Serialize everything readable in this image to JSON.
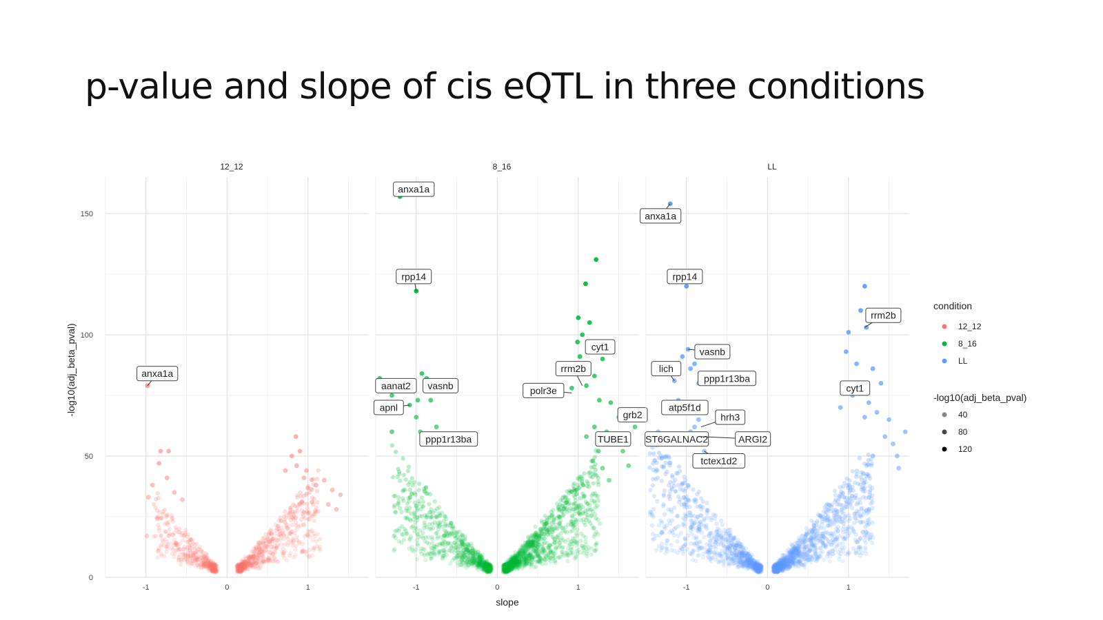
{
  "slide": {
    "title": "p-value and slope of cis eQTL in three conditions"
  },
  "chart_data": {
    "type": "scatter",
    "xlabel": "slope",
    "ylabel": "-log10(adj_beta_pval)",
    "xlim": [
      -1.5,
      1.75
    ],
    "ylim": [
      0,
      165
    ],
    "x_ticks": [
      -1,
      0,
      1
    ],
    "y_ticks": [
      0,
      50,
      100,
      150
    ],
    "grid": true,
    "legend_position": "right",
    "legend": {
      "color_title": "condition",
      "color_entries": [
        {
          "label": "12_12",
          "color": "#F8766D"
        },
        {
          "label": "8_16",
          "color": "#00BA38"
        },
        {
          "label": "LL",
          "color": "#619CFF"
        }
      ],
      "alpha_title": "-log10(adj_beta_pval)",
      "alpha_entries": [
        {
          "label": "40",
          "value": 40
        },
        {
          "label": "80",
          "value": 80
        },
        {
          "label": "120",
          "value": 120
        }
      ]
    },
    "facets": [
      {
        "name": "12_12",
        "color": "#F8766D",
        "highlight_points": [
          [
            -0.98,
            79
          ],
          [
            -0.72,
            52
          ],
          [
            -0.82,
            52
          ],
          [
            -0.84,
            47
          ],
          [
            -0.74,
            41
          ],
          [
            -0.92,
            38
          ],
          [
            -0.65,
            35
          ],
          [
            -0.55,
            32
          ],
          [
            -0.97,
            33
          ],
          [
            -0.99,
            17
          ],
          [
            0.85,
            58
          ],
          [
            0.9,
            52
          ],
          [
            0.8,
            50
          ],
          [
            0.98,
            44
          ],
          [
            0.86,
            46
          ],
          [
            1.2,
            40
          ],
          [
            1.3,
            36
          ],
          [
            1.4,
            34
          ],
          [
            1.1,
            38
          ],
          [
            1.25,
            30
          ],
          [
            1.35,
            28
          ],
          [
            0.95,
            41
          ],
          [
            1.05,
            31
          ],
          [
            0.72,
            44
          ]
        ],
        "cloud": {
          "slope_min": 0.15,
          "neg_spread": 0.75,
          "pos_spread": 1.0,
          "n_neg": 420,
          "n_pos": 650
        },
        "labels": [
          {
            "text": "anxa1a",
            "x": -0.98,
            "y": 79,
            "lx": -0.86,
            "ly": 84
          }
        ]
      },
      {
        "name": "8_16",
        "color": "#00BA38",
        "highlight_points": [
          [
            -1.2,
            157
          ],
          [
            -1.0,
            118
          ],
          [
            1.22,
            131
          ],
          [
            1.09,
            121
          ],
          [
            1.0,
            107
          ],
          [
            1.14,
            105
          ],
          [
            1.05,
            100
          ],
          [
            0.99,
            97
          ],
          [
            1.3,
            90
          ],
          [
            1.02,
            91
          ],
          [
            1.2,
            83
          ],
          [
            1.1,
            79
          ],
          [
            0.92,
            78
          ],
          [
            1.26,
            73
          ],
          [
            1.4,
            72
          ],
          [
            -1.45,
            82
          ],
          [
            -0.93,
            84
          ],
          [
            -0.87,
            82
          ],
          [
            -1.25,
            78
          ],
          [
            -1.08,
            71
          ],
          [
            -1.3,
            75
          ],
          [
            -0.98,
            73
          ],
          [
            -0.82,
            73
          ],
          [
            -1.3,
            60
          ],
          [
            -0.75,
            62
          ],
          [
            -1.0,
            66
          ],
          [
            -0.95,
            60
          ],
          [
            -1.4,
            70
          ],
          [
            -1.2,
            68
          ],
          [
            -0.8,
            58
          ],
          [
            1.5,
            66
          ],
          [
            1.7,
            62
          ],
          [
            1.45,
            55
          ],
          [
            1.62,
            46
          ],
          [
            1.55,
            52
          ],
          [
            1.35,
            60
          ],
          [
            1.2,
            62
          ],
          [
            1.1,
            58
          ],
          [
            1.3,
            45
          ],
          [
            1.25,
            52
          ],
          [
            1.18,
            48
          ],
          [
            1.38,
            40
          ]
        ],
        "cloud": {
          "slope_min": 0.1,
          "neg_spread": 1.2,
          "pos_spread": 1.15,
          "n_neg": 800,
          "n_pos": 1300
        },
        "labels": [
          {
            "text": "anxa1a",
            "x": -1.2,
            "y": 157,
            "lx": -1.03,
            "ly": 160
          },
          {
            "text": "rpp14",
            "x": -1.0,
            "y": 118,
            "lx": -1.03,
            "ly": 124
          },
          {
            "text": "cyt1",
            "x": 1.2,
            "y": 95,
            "lx": 1.27,
            "ly": 95
          },
          {
            "text": "rrm2b",
            "x": 1.05,
            "y": 79,
            "lx": 0.94,
            "ly": 86
          },
          {
            "text": "polr3e",
            "x": 0.92,
            "y": 76,
            "lx": 0.57,
            "ly": 77
          },
          {
            "text": "aanat2",
            "x": -1.2,
            "y": 78,
            "lx": -1.25,
            "ly": 79
          },
          {
            "text": "vasnb",
            "x": -0.9,
            "y": 80,
            "lx": -0.7,
            "ly": 79
          },
          {
            "text": "apnl",
            "x": -1.08,
            "y": 71,
            "lx": -1.34,
            "ly": 70
          },
          {
            "text": "grb2",
            "x": 1.55,
            "y": 66,
            "lx": 1.67,
            "ly": 67
          },
          {
            "text": "ppp1r13ba",
            "x": -0.8,
            "y": 58,
            "lx": -0.6,
            "ly": 57
          },
          {
            "text": "TUBE1",
            "x": 1.3,
            "y": 57,
            "lx": 1.43,
            "ly": 57
          }
        ]
      },
      {
        "name": "LL",
        "color": "#619CFF",
        "highlight_points": [
          [
            -1.2,
            154
          ],
          [
            -1.0,
            120
          ],
          [
            -1.15,
            81
          ],
          [
            -0.98,
            94
          ],
          [
            -0.9,
            88
          ],
          [
            -1.05,
            91
          ],
          [
            -0.85,
            80
          ],
          [
            -0.95,
            86
          ],
          [
            -1.0,
            72
          ],
          [
            -1.1,
            73
          ],
          [
            -0.85,
            65
          ],
          [
            -0.9,
            62
          ],
          [
            -0.82,
            58
          ],
          [
            -0.95,
            60
          ],
          [
            -0.75,
            55
          ],
          [
            -0.78,
            52
          ],
          [
            -1.05,
            57
          ],
          [
            -1.35,
            60
          ],
          [
            1.2,
            120
          ],
          [
            1.15,
            110
          ],
          [
            1.22,
            103
          ],
          [
            1.0,
            101
          ],
          [
            0.97,
            93
          ],
          [
            1.3,
            86
          ],
          [
            1.1,
            88
          ],
          [
            1.4,
            80
          ],
          [
            1.25,
            72
          ],
          [
            1.5,
            65
          ],
          [
            1.7,
            60
          ],
          [
            1.55,
            55
          ],
          [
            1.35,
            68
          ],
          [
            1.45,
            58
          ],
          [
            1.6,
            50
          ],
          [
            1.15,
            78
          ],
          [
            1.05,
            75
          ],
          [
            1.2,
            66
          ],
          [
            0.9,
            70
          ],
          [
            1.3,
            50
          ],
          [
            1.62,
            45
          ]
        ],
        "cloud": {
          "slope_min": 0.1,
          "neg_spread": 1.35,
          "pos_spread": 1.2,
          "n_neg": 950,
          "n_pos": 1200
        },
        "labels": [
          {
            "text": "anxa1a",
            "x": -1.2,
            "y": 154,
            "lx": -1.32,
            "ly": 149
          },
          {
            "text": "rpp14",
            "x": -1.0,
            "y": 120,
            "lx": -1.02,
            "ly": 124
          },
          {
            "text": "rrm2b",
            "x": 1.2,
            "y": 103,
            "lx": 1.43,
            "ly": 108
          },
          {
            "text": "vasnb",
            "x": -0.98,
            "y": 94,
            "lx": -0.68,
            "ly": 93
          },
          {
            "text": "lich",
            "x": -1.15,
            "y": 81,
            "lx": -1.25,
            "ly": 86
          },
          {
            "text": "ppp1r13ba",
            "x": -0.85,
            "y": 80,
            "lx": -0.5,
            "ly": 82
          },
          {
            "text": "cyt1",
            "x": 1.1,
            "y": 78,
            "lx": 1.08,
            "ly": 78
          },
          {
            "text": "atp5f1d",
            "x": -1.0,
            "y": 72,
            "lx": -1.02,
            "ly": 70
          },
          {
            "text": "hrh3",
            "x": -0.82,
            "y": 62,
            "lx": -0.46,
            "ly": 66
          },
          {
            "text": "ST6GALNAC2",
            "x": -0.85,
            "y": 60,
            "lx": -1.12,
            "ly": 57
          },
          {
            "text": "ARGI2",
            "x": -0.82,
            "y": 58,
            "lx": -0.18,
            "ly": 57
          },
          {
            "text": "tctex1d2",
            "x": -0.78,
            "y": 52,
            "lx": -0.6,
            "ly": 48
          }
        ]
      }
    ]
  }
}
